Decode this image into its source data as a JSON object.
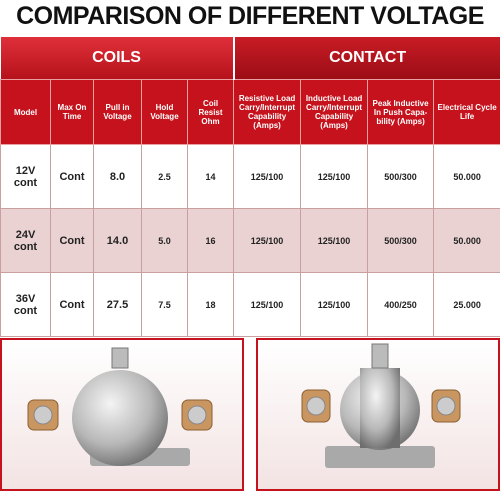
{
  "title": "COMPARISON OF DIFFERENT VOLTAGE",
  "table": {
    "groups": [
      "COILS",
      "CONTACT"
    ],
    "columns": [
      "Model",
      "Max On Time",
      "Pull in Voltage",
      "Hold Voltage",
      "Coil Resist Ohm",
      "Resistive Load Carry/Interrupt Capability (Amps)",
      "Inductive Load Carry/Interrupt Capability (Amps)",
      "Peak Inductive In Push Capa-bility (Amps)",
      "Electrical Cycle Life"
    ],
    "rows": [
      [
        "12V cont",
        "Cont",
        "8.0",
        "2.5",
        "14",
        "125/100",
        "125/100",
        "500/300",
        "50.000"
      ],
      [
        "24V cont",
        "Cont",
        "14.0",
        "5.0",
        "16",
        "125/100",
        "125/100",
        "500/300",
        "50.000"
      ],
      [
        "36V cont",
        "Cont",
        "27.5",
        "7.5",
        "18",
        "125/100",
        "125/100",
        "400/250",
        "25.000"
      ]
    ]
  }
}
